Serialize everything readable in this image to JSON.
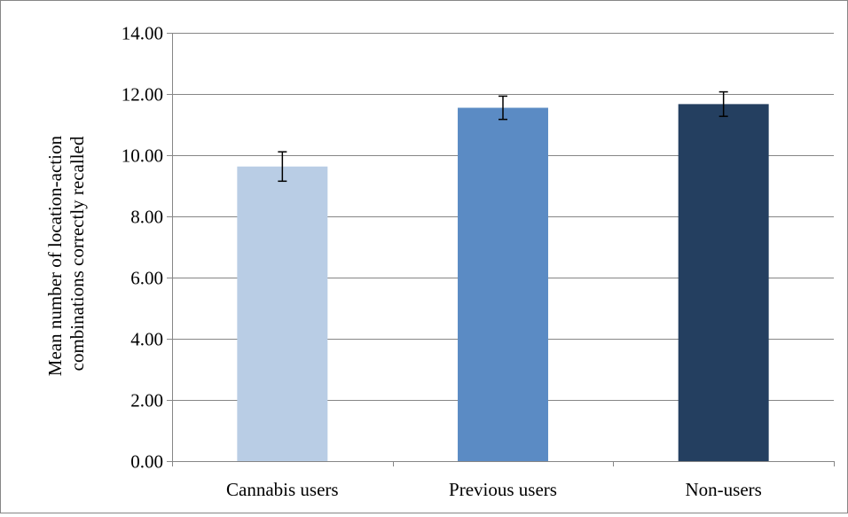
{
  "chart_data": {
    "type": "bar",
    "categories": [
      "Cannabis users",
      "Previous users",
      "Non-users"
    ],
    "values": [
      9.63,
      11.55,
      11.67
    ],
    "error": [
      0.48,
      0.38,
      0.4
    ],
    "colors": [
      "#b9cde5",
      "#5b8bc4",
      "#243f60"
    ],
    "title": "",
    "xlabel": "",
    "ylabel_lines": [
      "Mean number of location-action",
      "combinations correctly recalled"
    ],
    "ylim": [
      0,
      14
    ],
    "yticks": [
      "0.00",
      "2.00",
      "4.00",
      "6.00",
      "8.00",
      "10.00",
      "12.00",
      "14.00"
    ],
    "grid": true,
    "legend": "none"
  }
}
